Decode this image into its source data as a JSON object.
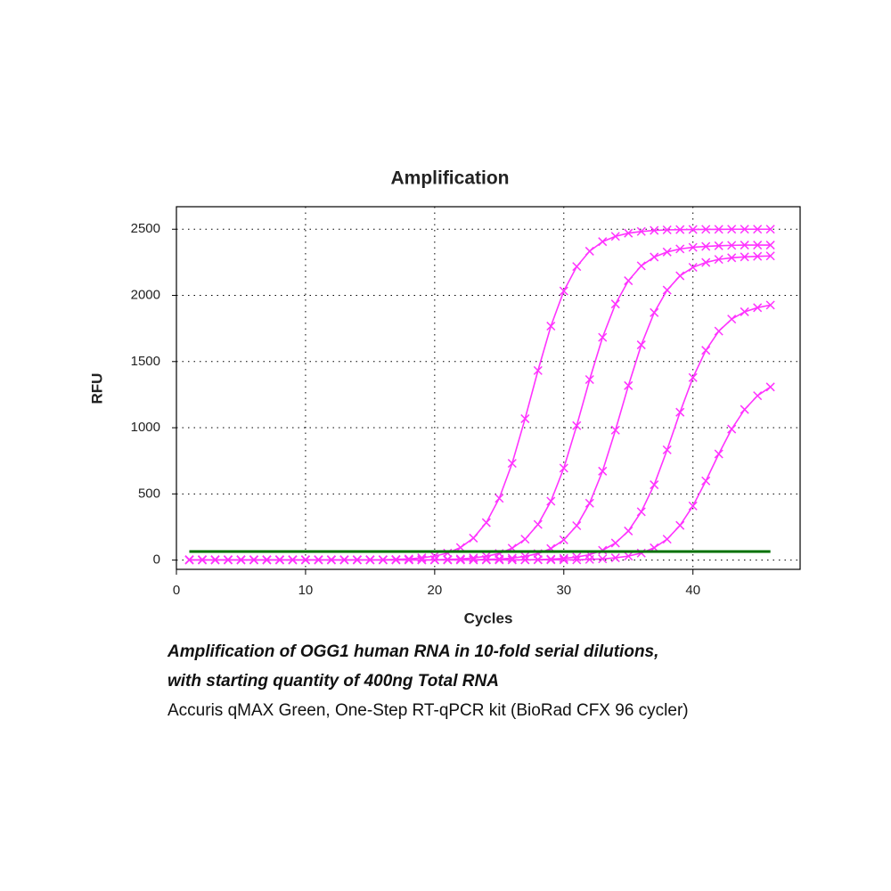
{
  "chart_data": {
    "type": "line",
    "title": "Amplification",
    "x_label": "Cycles",
    "y_label": "RFU",
    "x": [
      1,
      2,
      3,
      4,
      5,
      6,
      7,
      8,
      9,
      10,
      11,
      12,
      13,
      14,
      15,
      16,
      17,
      18,
      19,
      20,
      21,
      22,
      23,
      24,
      25,
      26,
      27,
      28,
      29,
      30,
      31,
      32,
      33,
      34,
      35,
      36,
      37,
      38,
      39,
      40,
      41,
      42,
      43,
      44,
      45,
      46
    ],
    "series": [
      {
        "color": "#ff33ff",
        "values": [
          2,
          2,
          2,
          2,
          2,
          2,
          2,
          2,
          2,
          2,
          2,
          2,
          2,
          2,
          2,
          2,
          5,
          9,
          17,
          30,
          53,
          95,
          166,
          283,
          467,
          731,
          1068,
          1432,
          1768,
          2033,
          2218,
          2334,
          2406,
          2446,
          2470,
          2483,
          2491,
          2495,
          2497,
          2498,
          2499,
          2499,
          2500,
          2500,
          2500,
          2500
        ]
      },
      {
        "color": "#ff33ff",
        "values": [
          2,
          2,
          2,
          2,
          2,
          2,
          2,
          2,
          2,
          2,
          2,
          2,
          2,
          2,
          2,
          2,
          2,
          2,
          2,
          2,
          5,
          9,
          16,
          29,
          50,
          90,
          158,
          269,
          445,
          695,
          1016,
          1364,
          1683,
          1935,
          2111,
          2223,
          2290,
          2328,
          2351,
          2363,
          2370,
          2375,
          2378,
          2380,
          2380,
          2380
        ]
      },
      {
        "color": "#ff33ff",
        "values": [
          2,
          2,
          2,
          2,
          2,
          2,
          2,
          2,
          2,
          2,
          2,
          2,
          2,
          2,
          2,
          2,
          2,
          2,
          2,
          2,
          2,
          2,
          2,
          5,
          8,
          15,
          28,
          49,
          87,
          153,
          260,
          430,
          672,
          982,
          1318,
          1626,
          1870,
          2040,
          2148,
          2212,
          2249,
          2272,
          2284,
          2291,
          2295,
          2298
        ]
      },
      {
        "color": "#ff33ff",
        "values": [
          2,
          2,
          2,
          2,
          2,
          2,
          2,
          2,
          2,
          2,
          2,
          2,
          2,
          2,
          2,
          2,
          2,
          2,
          2,
          2,
          2,
          2,
          2,
          2,
          2,
          2,
          2,
          4,
          7,
          13,
          23,
          41,
          74,
          129,
          220,
          365,
          569,
          833,
          1117,
          1379,
          1585,
          1730,
          1821,
          1876,
          1907,
          1927
        ]
      },
      {
        "color": "#ff33ff",
        "values": [
          2,
          2,
          2,
          2,
          2,
          2,
          2,
          2,
          2,
          2,
          2,
          2,
          2,
          2,
          2,
          2,
          2,
          2,
          2,
          2,
          2,
          2,
          2,
          2,
          2,
          2,
          2,
          2,
          2,
          2,
          2,
          5,
          9,
          17,
          30,
          53,
          93,
          158,
          262,
          409,
          598,
          802,
          990,
          1138,
          1242,
          1308
        ]
      }
    ],
    "threshold": 65,
    "threshold_color": "#007000",
    "xlim": [
      0,
      48.3
    ],
    "ylim": [
      -70,
      2670
    ],
    "xticks": [
      0,
      10,
      20,
      30,
      40
    ],
    "yticks": [
      0,
      500,
      1000,
      1500,
      2000,
      2500
    ],
    "grid": true
  },
  "caption": {
    "line1": "Amplification of OGG1 human RNA in 10-fold serial dilutions,",
    "line2": "with starting quantity of 400ng Total RNA",
    "line3": "Accuris qMAX Green, One-Step RT-qPCR kit (BioRad CFX 96 cycler)"
  }
}
